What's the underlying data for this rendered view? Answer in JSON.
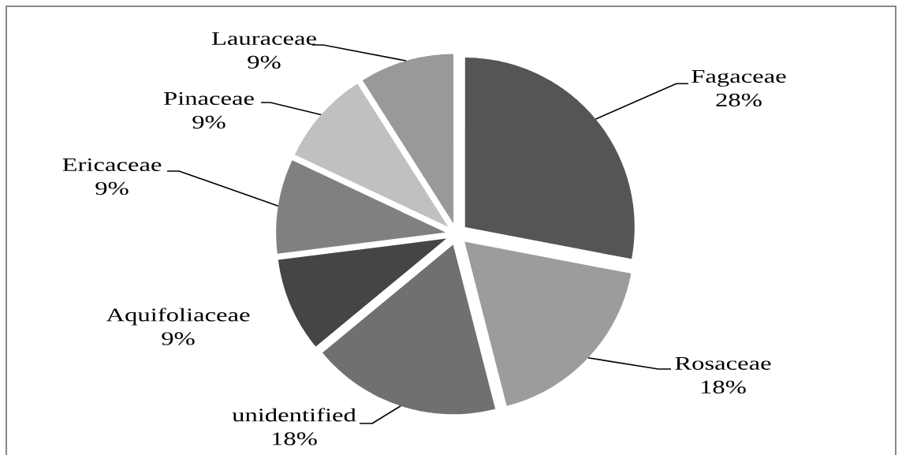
{
  "chart_data": {
    "type": "pie",
    "categories": [
      "Fagaceae",
      "Rosaceae",
      "unidentified",
      "Aquifoliaceae",
      "Ericaceae",
      "Pinaceae",
      "Lauraceae"
    ],
    "values": [
      28,
      18,
      18,
      9,
      9,
      9,
      9
    ],
    "value_labels": [
      "28%",
      "18%",
      "18%",
      "9%",
      "9%",
      "9%",
      "9%"
    ],
    "colors": [
      "#555555",
      "#9c9c9c",
      "#707070",
      "#454545",
      "#808080",
      "#c0c0c0",
      "#999999"
    ]
  }
}
